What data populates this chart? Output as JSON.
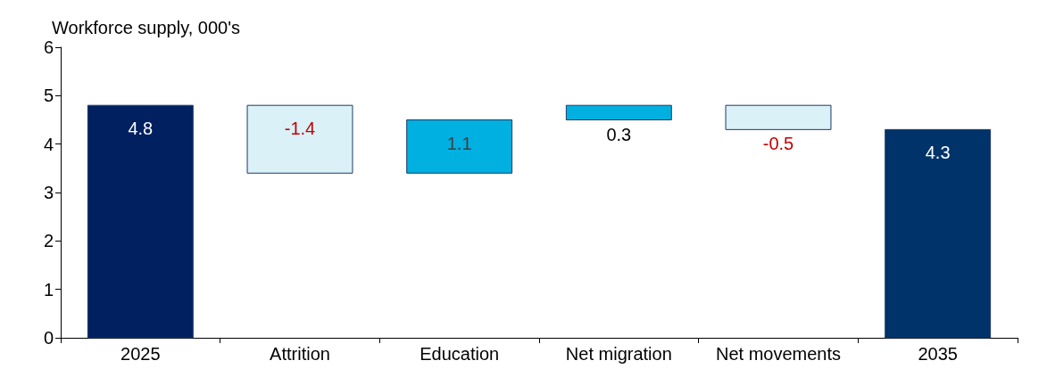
{
  "chart_data": {
    "type": "bar",
    "ylabel": "Workforce supply, 000's",
    "categories": [
      "2025",
      "Attrition",
      "Education",
      "Net migration",
      "Net movements",
      "2035"
    ],
    "values": [
      4.8,
      -1.4,
      1.1,
      0.3,
      -0.5,
      4.3
    ],
    "base": [
      0,
      4.8,
      3.4,
      4.5,
      4.8,
      0
    ],
    "colors": [
      "#002060",
      "#daf1f8",
      "#00b0e0",
      "#00b0e0",
      "#daf1f8",
      "#00336a"
    ],
    "ylim": [
      0,
      6
    ],
    "yticks": [
      0,
      1,
      2,
      3,
      4,
      5,
      6
    ],
    "grid": false,
    "data_labels": true
  }
}
